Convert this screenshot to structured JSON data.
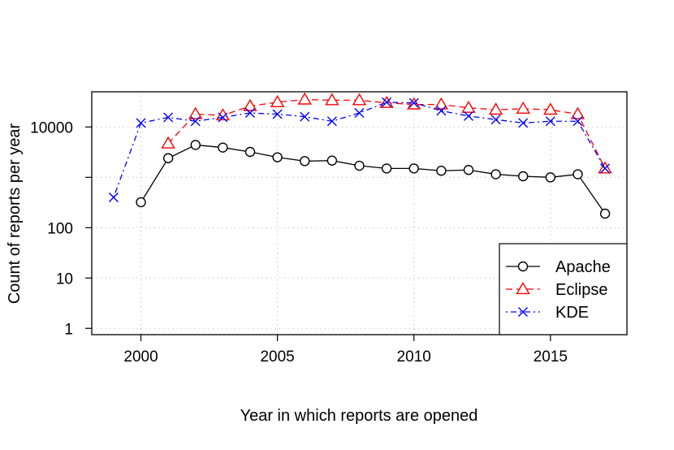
{
  "chart_data": {
    "type": "line",
    "title": "",
    "xlabel": "Year in which reports are opened",
    "ylabel": "Count of reports per year",
    "x_ticks": [
      2000,
      2005,
      2010,
      2015
    ],
    "y_ticks": [
      1,
      10,
      100,
      1000,
      10000
    ],
    "y_tick_labels": [
      "1",
      "10",
      "100",
      "",
      "10000"
    ],
    "xlim": [
      1998.2,
      2017.8
    ],
    "ylim": [
      0.75,
      50000
    ],
    "y_scale": "log",
    "grid": true,
    "legend_position": "bottom-right",
    "series": [
      {
        "name": "Apache",
        "color": "#000000",
        "marker": "circle",
        "line_style": "solid",
        "x": [
          2000,
          2001,
          2002,
          2003,
          2004,
          2005,
          2006,
          2007,
          2008,
          2009,
          2010,
          2011,
          2012,
          2013,
          2014,
          2015,
          2016,
          2017
        ],
        "y": [
          320,
          2400,
          4400,
          3900,
          3200,
          2500,
          2100,
          2150,
          1700,
          1500,
          1500,
          1350,
          1400,
          1150,
          1050,
          1000,
          1150,
          190
        ]
      },
      {
        "name": "Eclipse",
        "color": "#ff0000",
        "marker": "triangle",
        "line_style": "dashed",
        "x": [
          2001,
          2002,
          2003,
          2004,
          2005,
          2006,
          2007,
          2008,
          2009,
          2010,
          2011,
          2012,
          2013,
          2014,
          2015,
          2016,
          2017
        ],
        "y": [
          4700,
          18000,
          17000,
          26000,
          31000,
          35000,
          34000,
          34000,
          30000,
          28000,
          28000,
          24000,
          22000,
          23000,
          22000,
          18000,
          1500
        ]
      },
      {
        "name": "KDE",
        "color": "#0000ff",
        "marker": "x",
        "line_style": "dotdash",
        "x": [
          1999,
          2000,
          2001,
          2002,
          2003,
          2004,
          2005,
          2006,
          2007,
          2008,
          2009,
          2010,
          2011,
          2012,
          2013,
          2014,
          2015,
          2016,
          2017
        ],
        "y": [
          400,
          12000,
          15500,
          13000,
          15500,
          19000,
          18000,
          16000,
          13000,
          19000,
          31000,
          30000,
          21000,
          16500,
          14000,
          12000,
          13000,
          13000,
          1500
        ]
      }
    ]
  }
}
